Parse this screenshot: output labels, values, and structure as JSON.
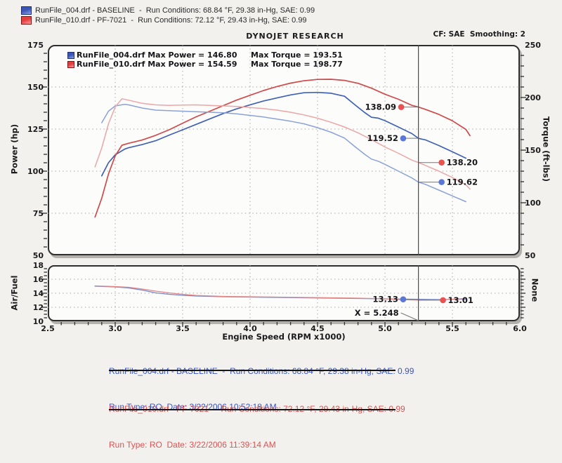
{
  "page": {
    "title": "DYNOJET RESEARCH",
    "smoothing_label": "CF: SAE  Smoothing: 2"
  },
  "header_runs": [
    {
      "text": "RunFile_004.drf - BASELINE  -  Run Conditions: 68.84 °F, 29.38 in-Hg, SAE: 0.99"
    },
    {
      "text": "RunFile_010.drf - PF-7021  -  Run Conditions: 72.12 °F, 29.43 in-Hg, SAE: 0.99"
    }
  ],
  "legend": {
    "rows": [
      {
        "left": "RunFile_004.drf Max Power = 146.80",
        "right": "Max Torque = 193.51"
      },
      {
        "left": "RunFile_010.drf Max Power = 154.59",
        "right": "Max Torque = 198.77"
      }
    ]
  },
  "axis_titles": {
    "power": "Power (hp)",
    "torque": "Torque (ft-lbs)",
    "afr": "Air/Fuel",
    "afr_right": "None",
    "x": "Engine Speed (RPM x1000)"
  },
  "footer": {
    "blocks": [
      {
        "line1": "RunFile_004.drf - BASELINE  -  Run Conditions: 68.84 °F, 29.38 in-Hg, SAE: 0.99",
        "line2": "Run Type: RO  Date: 3/22/2006 10:52:18 AM",
        "color": "#3a56c8"
      },
      {
        "line1": "RunFile_010.drf - PF-7021  -  Run Conditions: 72.12 °F, 29.43 in-Hg, SAE: 0.99",
        "line2": "Run Type: RO  Date: 3/22/2006 11:39:14 AM",
        "color": "#e05252"
      }
    ]
  },
  "colors": {
    "baseline_power": "#4061b4",
    "baseline_torque": "#8ba2d8",
    "pf7021_power": "#cf4a4a",
    "pf7021_torque": "#eda5a5",
    "baseline_afr": "#7288cc",
    "pf7021_afr": "#e28585",
    "marker_baseline": "#5c78d6",
    "marker_pf7021": "#ea5252",
    "grid": "#9b9b9b",
    "cursor": "#4a4a4a",
    "tick": "#2e2e2e",
    "connector": "#777777",
    "chip_baseline_dark": "#3d55b5",
    "chip_baseline_light": "#8ca0e8",
    "chip_baseline_border": "#1d2f73",
    "chip_pf7021_dark": "#e43f3f",
    "chip_pf7021_light": "#ff9d9d",
    "chip_pf7021_border": "#7e1414"
  },
  "chart_data": {
    "type": "line",
    "title": "DYNOJET RESEARCH",
    "xlabel": "Engine Speed (RPM x1000)",
    "x_range": [
      2.5,
      6.0
    ],
    "x_ticks": [
      "2.5",
      "3.0",
      "3.5",
      "4.0",
      "4.5",
      "5.0",
      "5.5",
      "6.0"
    ],
    "grid": {
      "rpm": [
        3.0,
        3.5,
        4.0,
        4.5,
        5.0,
        5.5
      ],
      "power_lines": [
        150,
        125,
        100,
        75
      ],
      "afr_lines": [
        16,
        14,
        12
      ]
    },
    "cursor": {
      "rpm": 5.248,
      "label": "X = 5.248"
    },
    "panels": [
      {
        "name": "power_torque",
        "y_left": {
          "label": "Power (hp)",
          "range": [
            50,
            175
          ],
          "ticks": [
            "175",
            "150",
            "125",
            "100",
            "75",
            "50"
          ]
        },
        "y_right": {
          "label": "Torque (ft-lbs)",
          "range": [
            50,
            250
          ],
          "ticks": [
            "250",
            "200",
            "150",
            "100",
            "50"
          ]
        },
        "series": [
          {
            "id": "baseline_power",
            "name": "RunFile_004.drf Power (hp)",
            "axis": "left",
            "max": 146.8,
            "x": [
              2.9,
              2.95,
              3.0,
              3.07,
              3.1,
              3.2,
              3.3,
              3.4,
              3.5,
              3.6,
              3.7,
              3.8,
              3.9,
              4.0,
              4.1,
              4.2,
              4.3,
              4.4,
              4.5,
              4.6,
              4.7,
              4.78,
              4.85,
              4.9,
              4.95,
              5.0,
              5.1,
              5.2,
              5.248,
              5.3,
              5.4,
              5.5,
              5.6
            ],
            "y": [
              97.2,
              105.0,
              109.7,
              113.1,
              113.9,
              115.8,
              118.1,
              121.4,
              124.6,
              127.8,
              131.0,
              134.2,
              137.0,
              139.4,
              141.7,
              143.5,
              145.3,
              146.6,
              146.8,
              146.3,
              144.5,
              139.2,
              134.8,
              132.0,
              131.5,
              130.0,
              126.2,
              122.3,
              119.5,
              118.6,
              115.2,
              111.5,
              107.7
            ]
          },
          {
            "id": "pf7021_power",
            "name": "RunFile_010.drf Power (hp)",
            "axis": "left",
            "max": 154.59,
            "x": [
              2.85,
              2.9,
              2.95,
              3.0,
              3.05,
              3.1,
              3.2,
              3.3,
              3.4,
              3.5,
              3.6,
              3.7,
              3.8,
              3.9,
              4.0,
              4.1,
              4.2,
              4.3,
              4.4,
              4.5,
              4.6,
              4.7,
              4.8,
              4.9,
              5.0,
              5.1,
              5.2,
              5.248,
              5.3,
              5.4,
              5.5,
              5.6,
              5.63
            ],
            "y": [
              72.7,
              83.9,
              98.3,
              109.1,
              115.4,
              116.6,
              118.5,
              121.3,
              124.6,
              128.5,
              132.3,
              135.6,
              138.9,
              142.2,
              145.1,
              147.9,
              150.3,
              152.3,
              153.7,
              154.5,
              154.6,
              153.9,
              152.2,
              149.3,
              145.7,
              142.7,
              139.1,
              138.1,
              136.7,
              133.7,
              129.9,
              124.8,
              121.1
            ]
          },
          {
            "id": "baseline_torque",
            "name": "RunFile_004.drf Torque (ft-lbs)",
            "axis": "right",
            "max": 193.51,
            "x": [
              2.9,
              2.95,
              3.0,
              3.07,
              3.1,
              3.2,
              3.3,
              3.4,
              3.5,
              3.6,
              3.7,
              3.8,
              3.9,
              4.0,
              4.1,
              4.2,
              4.3,
              4.4,
              4.5,
              4.6,
              4.7,
              4.78,
              4.85,
              4.9,
              4.95,
              5.0,
              5.1,
              5.2,
              5.248,
              5.3,
              5.4,
              5.5,
              5.6
            ],
            "y": [
              176,
              187,
              192,
              193.5,
              193,
              190,
              188,
              187.5,
              187,
              186.5,
              186,
              185.5,
              184.5,
              183,
              181.5,
              179.5,
              177.5,
              175,
              171.3,
              167,
              161.5,
              153,
              146,
              141.5,
              139.5,
              136.5,
              130,
              123.5,
              119.6,
              117.5,
              112,
              106.5,
              101
            ]
          },
          {
            "id": "pf7021_torque",
            "name": "RunFile_010.drf Torque (ft-lbs)",
            "axis": "right",
            "max": 198.77,
            "x": [
              2.85,
              2.9,
              2.95,
              3.0,
              3.05,
              3.1,
              3.2,
              3.3,
              3.4,
              3.5,
              3.6,
              3.7,
              3.8,
              3.9,
              4.0,
              4.1,
              4.2,
              4.3,
              4.4,
              4.5,
              4.6,
              4.7,
              4.8,
              4.9,
              5.0,
              5.1,
              5.2,
              5.248,
              5.3,
              5.4,
              5.5,
              5.6,
              5.63
            ],
            "y": [
              134,
              152,
              175,
              191,
              198.8,
              197.5,
              194.5,
              193,
              192.5,
              192.8,
              193,
              192.5,
              192,
              191.5,
              190.5,
              189.5,
              188,
              186,
              183.5,
              180.3,
              176.5,
              172,
              166.5,
              160,
              153,
              147,
              140.5,
              138.2,
              135.5,
              130,
              124,
              117,
              113
            ]
          }
        ]
      },
      {
        "name": "air_fuel",
        "y_left": {
          "label": "Air/Fuel",
          "range": [
            10,
            18
          ],
          "ticks": [
            "18",
            "16",
            "14",
            "12",
            "10"
          ]
        },
        "y_right": {
          "label": "None"
        },
        "series": [
          {
            "id": "baseline_afr",
            "name": "RunFile_004.drf Air/Fuel",
            "axis": "left",
            "x": [
              2.85,
              3.0,
              3.1,
              3.2,
              3.3,
              3.4,
              3.5,
              3.6,
              3.8,
              4.0,
              4.2,
              4.4,
              4.6,
              4.8,
              5.0,
              5.1,
              5.248,
              5.4,
              5.6
            ],
            "y": [
              15.0,
              14.9,
              14.75,
              14.45,
              14.05,
              13.85,
              13.7,
              13.6,
              13.5,
              13.45,
              13.4,
              13.35,
              13.3,
              13.25,
              13.2,
              13.17,
              13.13,
              13.1,
              13.15
            ]
          },
          {
            "id": "pf7021_afr",
            "name": "RunFile_010.drf Air/Fuel",
            "axis": "left",
            "x": [
              2.85,
              3.0,
              3.1,
              3.2,
              3.3,
              3.4,
              3.5,
              3.6,
              3.8,
              4.0,
              4.2,
              4.4,
              4.6,
              4.8,
              5.0,
              5.1,
              5.248,
              5.4,
              5.6
            ],
            "y": [
              15.05,
              14.95,
              14.85,
              14.6,
              14.3,
              14.05,
              13.85,
              13.68,
              13.55,
              13.5,
              13.45,
              13.4,
              13.35,
              13.3,
              13.2,
              13.1,
              13.01,
              13.05,
              13.25
            ]
          }
        ]
      }
    ],
    "markers": {
      "power": [
        {
          "label": "138.09",
          "value": 138.09,
          "run": "pf7021",
          "dot_rpm": 5.12,
          "side": "left"
        },
        {
          "label": "119.52",
          "value": 119.52,
          "run": "baseline",
          "dot_rpm": 5.135,
          "side": "left"
        }
      ],
      "torque": [
        {
          "label": "138.20",
          "value": 138.2,
          "run": "pf7021",
          "dot_rpm": 5.42,
          "side": "right"
        },
        {
          "label": "119.62",
          "value": 119.62,
          "run": "baseline",
          "dot_rpm": 5.42,
          "side": "right"
        }
      ],
      "afr": [
        {
          "label": "13.13",
          "value": 13.13,
          "run": "baseline",
          "dot_rpm": 5.135,
          "side": "left"
        },
        {
          "label": "13.01",
          "value": 13.01,
          "run": "pf7021",
          "dot_rpm": 5.43,
          "side": "right"
        }
      ]
    }
  }
}
